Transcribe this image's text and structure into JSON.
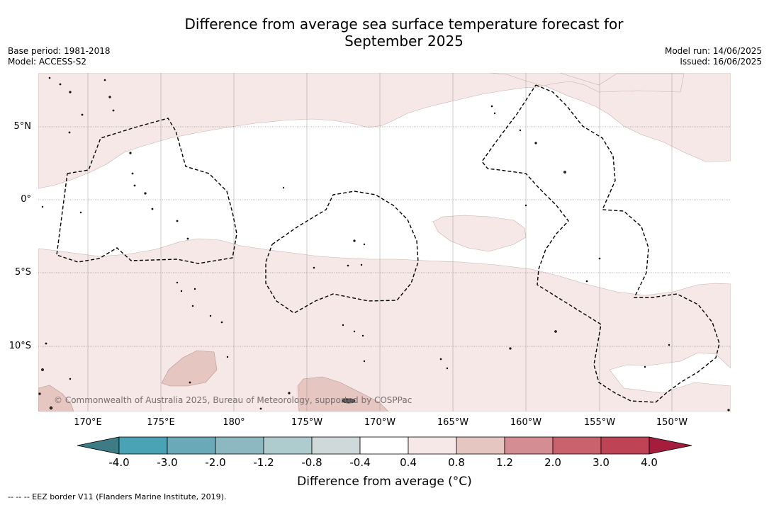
{
  "header": {
    "title_line1": "Difference from average sea surface temperature forecast for",
    "title_line2": "September 2025",
    "base_period": "Base period: 1981-2018",
    "model": "Model: ACCESS-S2",
    "model_run": "Model run: 14/06/2025",
    "issued": "Issued: 16/06/2025"
  },
  "map": {
    "lat_labels": [
      "5°N",
      "0°",
      "5°S",
      "10°S"
    ],
    "lon_labels": [
      "170°E",
      "175°E",
      "180°",
      "175°W",
      "170°W",
      "165°W",
      "160°W",
      "155°W",
      "150°W"
    ],
    "copyright": "© Commonwealth of Australia 2025, Bureau of Meteorology, supported by COSPPac",
    "colors": {
      "light_pink": "#f5e8e6",
      "pink": "#e6c6c1",
      "eez_border": "#000000"
    }
  },
  "colorbar": {
    "title": "Difference from average (°C)",
    "ticks": [
      "-4.0",
      "-3.0",
      "-2.0",
      "-1.2",
      "-0.8",
      "-0.4",
      "0.4",
      "0.8",
      "1.2",
      "2.0",
      "3.0",
      "4.0"
    ],
    "colors": [
      "#3d7c85",
      "#4aa3b5",
      "#6aa9b8",
      "#8db8c2",
      "#aecbcd",
      "#cfd9d9",
      "#ffffff",
      "#f5e8e6",
      "#e6c6c1",
      "#d48e93",
      "#c9626c",
      "#be4455",
      "#a51c3c"
    ]
  },
  "footer": {
    "legend_text": "--  --  -- EEZ border V11 (Flanders Marine Institute, 2019)."
  }
}
